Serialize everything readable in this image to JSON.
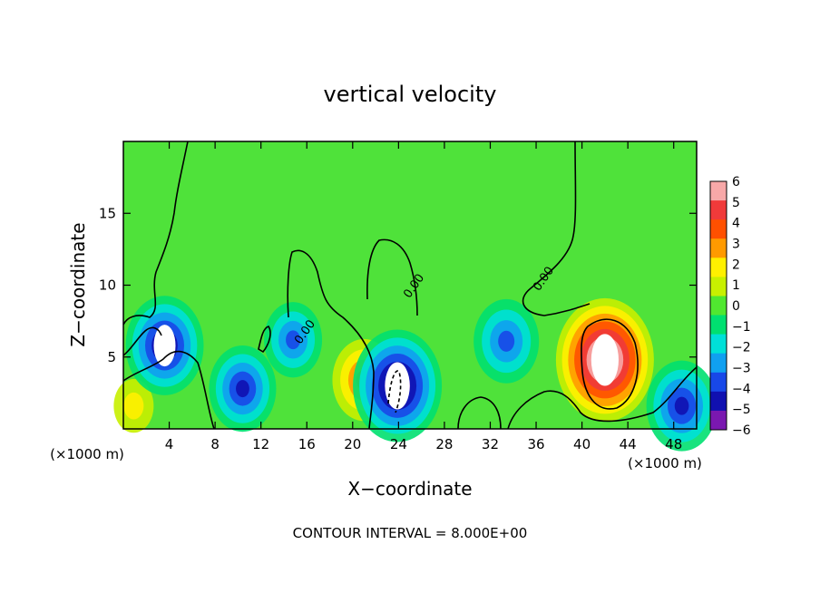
{
  "chart_data": {
    "type": "heatmap",
    "title": "vertical velocity",
    "xlabel": "X−coordinate",
    "ylabel": "Z−coordinate",
    "x_unit_left": "(×1000 m)",
    "x_unit_right": "(×1000 m)",
    "xlim": [
      0,
      50
    ],
    "ylim": [
      0,
      20
    ],
    "xticks": [
      4,
      8,
      12,
      16,
      20,
      24,
      28,
      32,
      36,
      40,
      44,
      48
    ],
    "yticks": [
      5,
      10,
      15
    ],
    "colorbar": {
      "ticks": [
        6,
        5,
        4,
        3,
        2,
        1,
        0,
        -1,
        -2,
        -3,
        -4,
        -5,
        -6
      ],
      "colors": [
        "#f7a8a8",
        "#f03a3a",
        "#ff5000",
        "#ff9a00",
        "#fff000",
        "#c8f000",
        "#50e830",
        "#00e070",
        "#00e0d8",
        "#10a0f0",
        "#1848e8",
        "#1010b0",
        "#7a18b0"
      ]
    },
    "contour_labels": [
      {
        "x": 16.1,
        "y": 6.6,
        "text": "0.00"
      },
      {
        "x": 25.6,
        "y": 9.8,
        "text": "0.00"
      },
      {
        "x": 36.9,
        "y": 10.3,
        "text": "0.00"
      }
    ],
    "features": [
      {
        "x": 0.9,
        "y": 1.6,
        "w": 1.6
      },
      {
        "x": 3.6,
        "y": 5.8,
        "w": -5.8
      },
      {
        "x": 10.4,
        "y": 2.8,
        "w": -4.6
      },
      {
        "x": 14.8,
        "y": 6.2,
        "w": -3.6
      },
      {
        "x": 21,
        "y": 3.4,
        "w": 4.2
      },
      {
        "x": 23.9,
        "y": 3.0,
        "w": -7
      },
      {
        "x": 33.4,
        "y": 6.1,
        "w": -4.4
      },
      {
        "x": 42,
        "y": 4.8,
        "w": 8
      },
      {
        "x": 48.7,
        "y": 1.6,
        "w": -5
      }
    ],
    "footer": "CONTOUR INTERVAL = 8.000E+00"
  }
}
